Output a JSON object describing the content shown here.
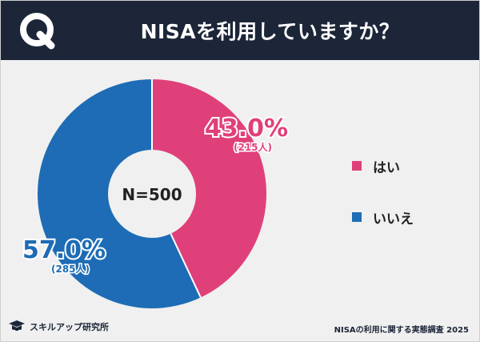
{
  "header": {
    "logo_letter": "Q",
    "title": "NISAを利用していますか？"
  },
  "chart_data": {
    "type": "pie",
    "title": "NISAを利用していますか？",
    "center_label": "N=500",
    "slices": [
      {
        "label": "はい",
        "percent": 43.0,
        "percent_text": "43.0%",
        "count_text": "(215人)",
        "color": "#e0407a"
      },
      {
        "label": "いいえ",
        "percent": 57.0,
        "percent_text": "57.0%",
        "count_text": "(285人)",
        "color": "#1d6cb5"
      }
    ],
    "legend_position": "right"
  },
  "footer": {
    "logo_text": "スキルアップ研究所",
    "source": "NISAの利用に関する実態調査 2025"
  }
}
